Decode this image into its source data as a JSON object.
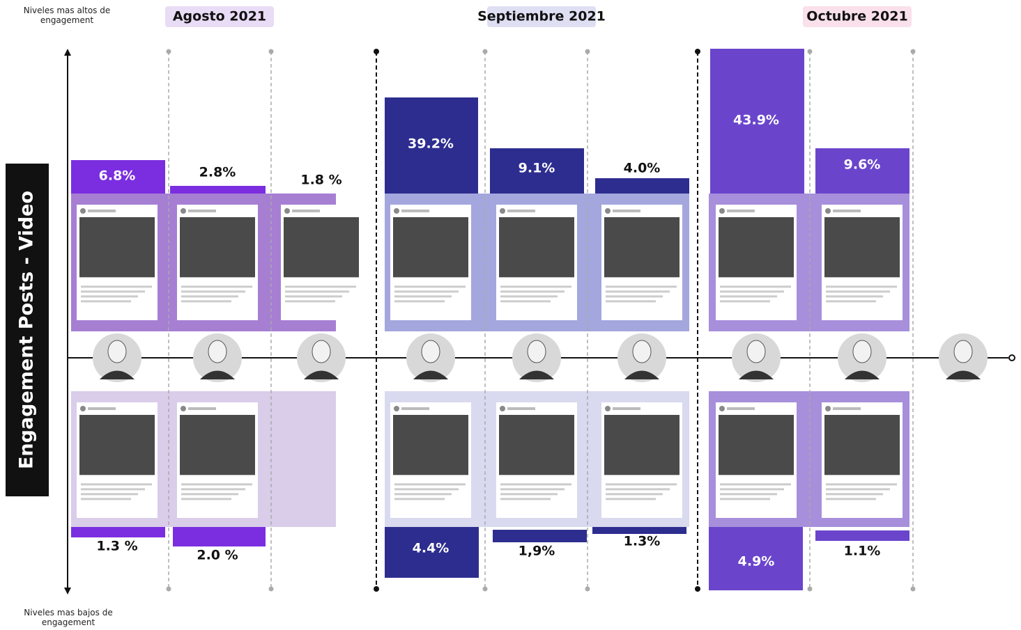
{
  "axis": {
    "title": "Engagement Posts - Video",
    "top_note": "Niveles mas altos de engagement",
    "bottom_note": "Niveles mas bajos de engagement"
  },
  "months": [
    "Agosto 2021",
    "Septiembre 2021",
    "Octubre 2021"
  ],
  "columns": [
    {
      "top": "6.8%",
      "bottom": "1.3 %"
    },
    {
      "top": "2.8%",
      "bottom": "2.0 %"
    },
    {
      "top": "1.8 %",
      "bottom": null
    },
    {
      "top": "39.2%",
      "bottom": "4.4%"
    },
    {
      "top": "9.1%",
      "bottom": "1,9%"
    },
    {
      "top": "4.0%",
      "bottom": "1.3%"
    },
    {
      "top": "43.9%",
      "bottom": "4.9%"
    },
    {
      "top": "9.6%",
      "bottom": "1.1%"
    }
  ]
}
